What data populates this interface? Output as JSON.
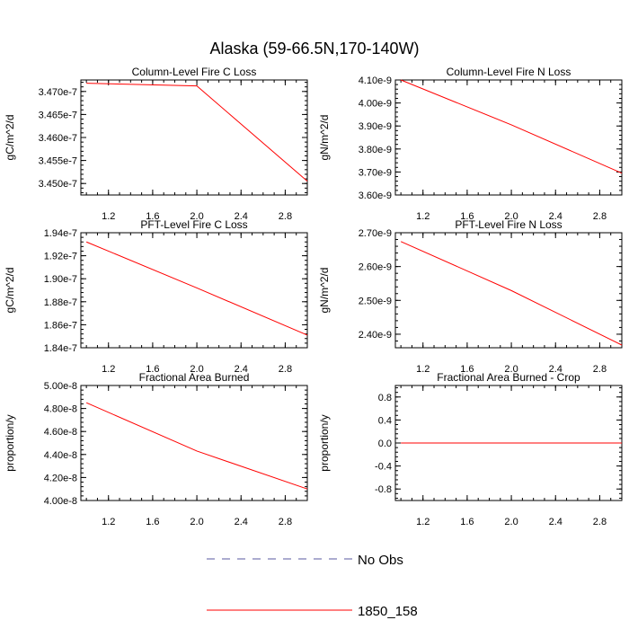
{
  "title": "Alaska (59-66.5N,170-140W)",
  "legend": [
    {
      "name": "No Obs",
      "style": "dashed",
      "color": "#5a5aa0"
    },
    {
      "name": "1850_158",
      "style": "solid",
      "color": "#ff0000"
    }
  ],
  "chart_data": [
    {
      "type": "line",
      "title": "Column-Level Fire C Loss",
      "ylabel": "gC/m^2/d",
      "x": [
        1,
        2,
        3
      ],
      "series": [
        {
          "name": "1850_158",
          "values": [
            3.4718e-07,
            3.4712e-07,
            3.4505e-07
          ]
        }
      ],
      "xlim": [
        0.95,
        3.0
      ],
      "ylim": [
        3.4475e-07,
        3.4725e-07
      ],
      "xticks": [
        1.2,
        1.6,
        2.0,
        2.4,
        2.8
      ],
      "xtick_labels": [
        "1.2",
        "1.6",
        "2.0",
        "2.4",
        "2.8"
      ],
      "yticks": [
        3.45e-07,
        3.455e-07,
        3.46e-07,
        3.465e-07,
        3.47e-07
      ],
      "ytick_labels": [
        "3.450e-7",
        "3.455e-7",
        "3.460e-7",
        "3.465e-7",
        "3.470e-7"
      ]
    },
    {
      "type": "line",
      "title": "Column-Level Fire N Loss",
      "ylabel": "gN/m^2/d",
      "x": [
        1,
        2,
        3
      ],
      "series": [
        {
          "name": "1850_158",
          "values": [
            4.1e-09,
            3.905e-09,
            3.695e-09
          ]
        }
      ],
      "xlim": [
        0.95,
        3.0
      ],
      "ylim": [
        3.6e-09,
        4.1e-09
      ],
      "xticks": [
        1.2,
        1.6,
        2.0,
        2.4,
        2.8
      ],
      "xtick_labels": [
        "1.2",
        "1.6",
        "2.0",
        "2.4",
        "2.8"
      ],
      "yticks": [
        3.6e-09,
        3.7e-09,
        3.8e-09,
        3.9e-09,
        4e-09,
        4.1e-09
      ],
      "ytick_labels": [
        "3.60e-9",
        "3.70e-9",
        "3.80e-9",
        "3.90e-9",
        "4.00e-9",
        "4.10e-9"
      ]
    },
    {
      "type": "line",
      "title": "PFT-Level Fire C Loss",
      "ylabel": "gC/m^2/d",
      "x": [
        1,
        2,
        3
      ],
      "series": [
        {
          "name": "1850_158",
          "values": [
            1.932e-07,
            1.892e-07,
            1.851e-07
          ]
        }
      ],
      "xlim": [
        0.95,
        3.0
      ],
      "ylim": [
        1.84e-07,
        1.94e-07
      ],
      "xticks": [
        1.2,
        1.6,
        2.0,
        2.4,
        2.8
      ],
      "xtick_labels": [
        "1.2",
        "1.6",
        "2.0",
        "2.4",
        "2.8"
      ],
      "yticks": [
        1.84e-07,
        1.86e-07,
        1.88e-07,
        1.9e-07,
        1.92e-07,
        1.94e-07
      ],
      "ytick_labels": [
        "1.84e-7",
        "1.86e-7",
        "1.88e-7",
        "1.90e-7",
        "1.92e-7",
        "1.94e-7"
      ]
    },
    {
      "type": "line",
      "title": "PFT-Level Fire N Loss",
      "ylabel": "gN/m^2/d",
      "x": [
        1,
        2,
        3
      ],
      "series": [
        {
          "name": "1850_158",
          "values": [
            2.674e-09,
            2.529e-09,
            2.368e-09
          ]
        }
      ],
      "xlim": [
        0.95,
        3.0
      ],
      "ylim": [
        2.36e-09,
        2.7e-09
      ],
      "xticks": [
        1.2,
        1.6,
        2.0,
        2.4,
        2.8
      ],
      "xtick_labels": [
        "1.2",
        "1.6",
        "2.0",
        "2.4",
        "2.8"
      ],
      "yticks": [
        2.4e-09,
        2.5e-09,
        2.6e-09,
        2.7e-09
      ],
      "ytick_labels": [
        "2.40e-9",
        "2.50e-9",
        "2.60e-9",
        "2.70e-9"
      ]
    },
    {
      "type": "line",
      "title": "Fractional Area Burned",
      "ylabel": "proportion/y",
      "x": [
        1,
        2,
        3
      ],
      "series": [
        {
          "name": "1850_158",
          "values": [
            4.85e-08,
            4.43e-08,
            4.1e-08
          ]
        }
      ],
      "xlim": [
        0.95,
        3.0
      ],
      "ylim": [
        4e-08,
        5e-08
      ],
      "xticks": [
        1.2,
        1.6,
        2.0,
        2.4,
        2.8
      ],
      "xtick_labels": [
        "1.2",
        "1.6",
        "2.0",
        "2.4",
        "2.8"
      ],
      "yticks": [
        4e-08,
        4.2e-08,
        4.4e-08,
        4.6e-08,
        4.8e-08,
        5e-08
      ],
      "ytick_labels": [
        "4.00e-8",
        "4.20e-8",
        "4.40e-8",
        "4.60e-8",
        "4.80e-8",
        "5.00e-8"
      ]
    },
    {
      "type": "line",
      "title": "Fractional Area Burned - Crop",
      "ylabel": "proportion/y",
      "x": [
        1,
        2,
        3
      ],
      "series": [
        {
          "name": "1850_158",
          "values": [
            0,
            0,
            0
          ]
        }
      ],
      "xlim": [
        0.95,
        3.0
      ],
      "ylim": [
        -1.0,
        1.0
      ],
      "xticks": [
        1.2,
        1.6,
        2.0,
        2.4,
        2.8
      ],
      "xtick_labels": [
        "1.2",
        "1.6",
        "2.0",
        "2.4",
        "2.8"
      ],
      "yticks": [
        -0.8,
        -0.4,
        0.0,
        0.4,
        0.8
      ],
      "ytick_labels": [
        "-0.8",
        "-0.4",
        "0.0",
        "0.4",
        "0.8"
      ]
    }
  ]
}
